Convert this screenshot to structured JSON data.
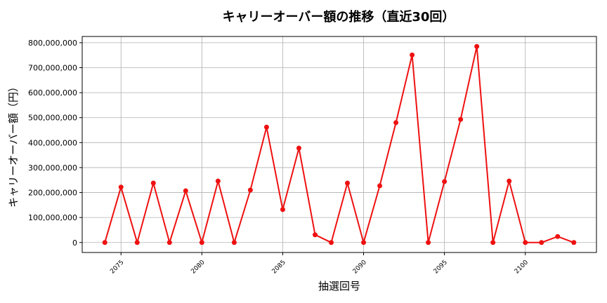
{
  "chart_data": {
    "type": "line",
    "title": "キャリーオーバー額の推移（直近30回）",
    "xlabel": "抽選回号",
    "ylabel": "キャリーオーバー額（円）",
    "xlim": [
      2072.6,
      2104.4
    ],
    "ylim": [
      -40000000,
      825000000
    ],
    "xticks": [
      2075,
      2080,
      2085,
      2090,
      2095,
      2100
    ],
    "yticks": [
      0,
      100000000,
      200000000,
      300000000,
      400000000,
      500000000,
      600000000,
      700000000,
      800000000
    ],
    "ytick_labels": [
      "0",
      "100,000,000",
      "200,000,000",
      "300,000,000",
      "400,000,000",
      "500,000,000",
      "600,000,000",
      "700,000,000",
      "800,000,000"
    ],
    "grid": true,
    "line_color": "#ee1111",
    "series": [
      {
        "x": [
          2074,
          2075,
          2076,
          2077,
          2078,
          2079,
          2080,
          2081,
          2082,
          2083,
          2084,
          2085,
          2086,
          2087,
          2088,
          2089,
          2090,
          2091,
          2092,
          2093,
          2094,
          2095,
          2096,
          2097,
          2098,
          2099,
          2100,
          2101,
          2102,
          2103
        ],
        "values": [
          0,
          222000000,
          0,
          238000000,
          0,
          207000000,
          0,
          246000000,
          0,
          210000000,
          462000000,
          132000000,
          378000000,
          31000000,
          0,
          238000000,
          0,
          227000000,
          480000000,
          751000000,
          0,
          244000000,
          493000000,
          785000000,
          0,
          246000000,
          0,
          0,
          24000000,
          0
        ]
      }
    ]
  }
}
